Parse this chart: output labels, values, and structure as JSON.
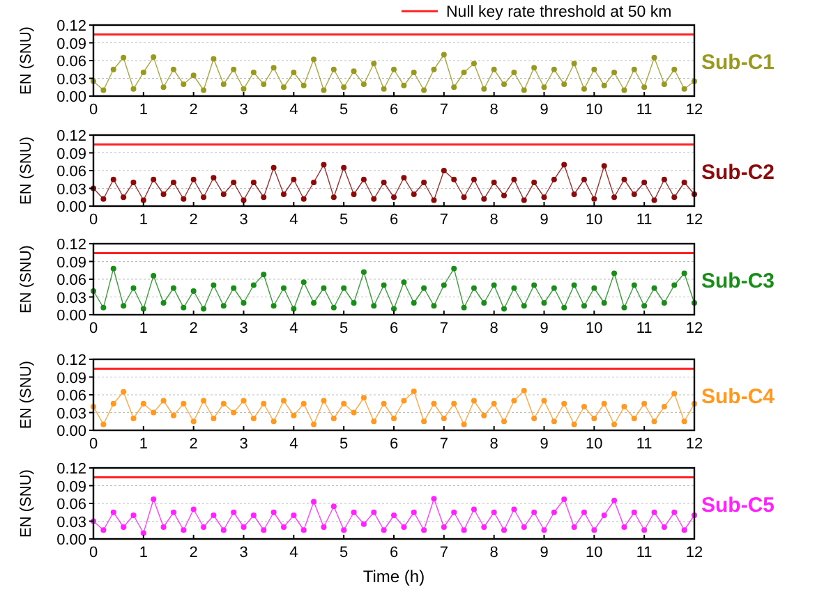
{
  "chart_data": [
    {
      "type": "line",
      "ylabel": "EN (SNU)",
      "x": [
        0,
        0.2,
        0.4,
        0.6,
        0.8,
        1,
        1.2,
        1.4,
        1.6,
        1.8,
        2,
        2.2,
        2.4,
        2.6,
        2.8,
        3,
        3.2,
        3.4,
        3.6,
        3.8,
        4,
        4.2,
        4.4,
        4.6,
        4.8,
        5,
        5.2,
        5.4,
        5.6,
        5.8,
        6,
        6.2,
        6.4,
        6.6,
        6.8,
        7,
        7.2,
        7.4,
        7.6,
        7.8,
        8,
        8.2,
        8.4,
        8.6,
        8.8,
        9,
        9.2,
        9.4,
        9.6,
        9.8,
        10,
        10.2,
        10.4,
        10.6,
        10.8,
        11,
        11.2,
        11.4,
        11.6,
        11.8,
        12
      ],
      "series": [
        {
          "name": "Sub-C1",
          "color": "#999922",
          "values": [
            0.025,
            0.01,
            0.045,
            0.065,
            0.012,
            0.04,
            0.066,
            0.015,
            0.045,
            0.02,
            0.035,
            0.01,
            0.063,
            0.02,
            0.045,
            0.012,
            0.04,
            0.02,
            0.048,
            0.015,
            0.04,
            0.018,
            0.062,
            0.01,
            0.045,
            0.015,
            0.042,
            0.02,
            0.055,
            0.012,
            0.045,
            0.018,
            0.04,
            0.01,
            0.045,
            0.07,
            0.015,
            0.04,
            0.055,
            0.012,
            0.045,
            0.02,
            0.04,
            0.01,
            0.048,
            0.015,
            0.045,
            0.02,
            0.055,
            0.012,
            0.045,
            0.018,
            0.04,
            0.01,
            0.045,
            0.015,
            0.065,
            0.02,
            0.045,
            0.012,
            0.025
          ]
        }
      ],
      "xlim": [
        0,
        12
      ],
      "xticks": [
        0,
        1,
        2,
        3,
        4,
        5,
        6,
        7,
        8,
        9,
        10,
        11,
        12
      ],
      "ylim": [
        0,
        0.12
      ],
      "yticks": [
        {
          "value": 0,
          "label": "0.00"
        },
        {
          "value": 0.03,
          "label": "0.03"
        },
        {
          "value": 0.06,
          "label": "0.06"
        },
        {
          "value": 0.09,
          "label": "0.09"
        },
        {
          "value": 0.12,
          "label": "0.12"
        }
      ],
      "ref_lines": [
        {
          "axis": "y",
          "value": 0.104,
          "label": "Null key rate threshold at 50 km",
          "color": "#ff2020"
        }
      ],
      "grid": "y",
      "marker": "circle",
      "legend": "top right"
    },
    {
      "type": "line",
      "ylabel": "EN (SNU)",
      "x": [
        0,
        0.2,
        0.4,
        0.6,
        0.8,
        1,
        1.2,
        1.4,
        1.6,
        1.8,
        2,
        2.2,
        2.4,
        2.6,
        2.8,
        3,
        3.2,
        3.4,
        3.6,
        3.8,
        4,
        4.2,
        4.4,
        4.6,
        4.8,
        5,
        5.2,
        5.4,
        5.6,
        5.8,
        6,
        6.2,
        6.4,
        6.6,
        6.8,
        7,
        7.2,
        7.4,
        7.6,
        7.8,
        8,
        8.2,
        8.4,
        8.6,
        8.8,
        9,
        9.2,
        9.4,
        9.6,
        9.8,
        10,
        10.2,
        10.4,
        10.6,
        10.8,
        11,
        11.2,
        11.4,
        11.6,
        11.8,
        12
      ],
      "series": [
        {
          "name": "Sub-C2",
          "color": "#8b0a0a",
          "values": [
            0.03,
            0.012,
            0.045,
            0.015,
            0.04,
            0.01,
            0.045,
            0.02,
            0.04,
            0.012,
            0.045,
            0.015,
            0.048,
            0.02,
            0.04,
            0.01,
            0.04,
            0.015,
            0.065,
            0.02,
            0.045,
            0.012,
            0.04,
            0.07,
            0.015,
            0.065,
            0.02,
            0.045,
            0.012,
            0.04,
            0.015,
            0.048,
            0.02,
            0.04,
            0.01,
            0.06,
            0.045,
            0.015,
            0.045,
            0.012,
            0.04,
            0.018,
            0.045,
            0.01,
            0.04,
            0.015,
            0.045,
            0.07,
            0.02,
            0.045,
            0.012,
            0.068,
            0.015,
            0.045,
            0.02,
            0.04,
            0.01,
            0.045,
            0.015,
            0.04,
            0.02
          ]
        }
      ],
      "xlim": [
        0,
        12
      ],
      "xticks": [
        0,
        1,
        2,
        3,
        4,
        5,
        6,
        7,
        8,
        9,
        10,
        11,
        12
      ],
      "ylim": [
        0,
        0.12
      ],
      "yticks": [
        {
          "value": 0,
          "label": "0.00"
        },
        {
          "value": 0.03,
          "label": "0.03"
        },
        {
          "value": 0.06,
          "label": "0.06"
        },
        {
          "value": 0.09,
          "label": "0.09"
        },
        {
          "value": 0.12,
          "label": "0.12"
        }
      ],
      "ref_lines": [
        {
          "axis": "y",
          "value": 0.104,
          "color": "#ff2020"
        }
      ],
      "grid": "y",
      "marker": "circle"
    },
    {
      "type": "line",
      "ylabel": "EN (SNU)",
      "x": [
        0,
        0.2,
        0.4,
        0.6,
        0.8,
        1,
        1.2,
        1.4,
        1.6,
        1.8,
        2,
        2.2,
        2.4,
        2.6,
        2.8,
        3,
        3.2,
        3.4,
        3.6,
        3.8,
        4,
        4.2,
        4.4,
        4.6,
        4.8,
        5,
        5.2,
        5.4,
        5.6,
        5.8,
        6,
        6.2,
        6.4,
        6.6,
        6.8,
        7,
        7.2,
        7.4,
        7.6,
        7.8,
        8,
        8.2,
        8.4,
        8.6,
        8.8,
        9,
        9.2,
        9.4,
        9.6,
        9.8,
        10,
        10.2,
        10.4,
        10.6,
        10.8,
        11,
        11.2,
        11.4,
        11.6,
        11.8,
        12
      ],
      "series": [
        {
          "name": "Sub-C3",
          "color": "#1a8c1a",
          "values": [
            0.04,
            0.012,
            0.078,
            0.015,
            0.045,
            0.01,
            0.066,
            0.02,
            0.045,
            0.012,
            0.04,
            0.01,
            0.05,
            0.015,
            0.045,
            0.02,
            0.05,
            0.068,
            0.015,
            0.045,
            0.01,
            0.055,
            0.02,
            0.045,
            0.012,
            0.045,
            0.02,
            0.072,
            0.015,
            0.05,
            0.01,
            0.055,
            0.02,
            0.045,
            0.015,
            0.05,
            0.078,
            0.012,
            0.045,
            0.02,
            0.05,
            0.01,
            0.045,
            0.015,
            0.05,
            0.02,
            0.045,
            0.012,
            0.05,
            0.015,
            0.045,
            0.02,
            0.07,
            0.012,
            0.05,
            0.015,
            0.045,
            0.02,
            0.05,
            0.07,
            0.02
          ]
        }
      ],
      "xlim": [
        0,
        12
      ],
      "xticks": [
        0,
        1,
        2,
        3,
        4,
        5,
        6,
        7,
        8,
        9,
        10,
        11,
        12
      ],
      "ylim": [
        0,
        0.12
      ],
      "yticks": [
        {
          "value": 0,
          "label": "0.00"
        },
        {
          "value": 0.03,
          "label": "0.03"
        },
        {
          "value": 0.06,
          "label": "0.06"
        },
        {
          "value": 0.09,
          "label": "0.09"
        },
        {
          "value": 0.12,
          "label": "0.12"
        }
      ],
      "ref_lines": [
        {
          "axis": "y",
          "value": 0.104,
          "color": "#ff2020"
        }
      ],
      "grid": "y",
      "marker": "circle"
    },
    {
      "type": "line",
      "ylabel": "EN (SNU)",
      "x": [
        0,
        0.2,
        0.4,
        0.6,
        0.8,
        1,
        1.2,
        1.4,
        1.6,
        1.8,
        2,
        2.2,
        2.4,
        2.6,
        2.8,
        3,
        3.2,
        3.4,
        3.6,
        3.8,
        4,
        4.2,
        4.4,
        4.6,
        4.8,
        5,
        5.2,
        5.4,
        5.6,
        5.8,
        6,
        6.2,
        6.4,
        6.6,
        6.8,
        7,
        7.2,
        7.4,
        7.6,
        7.8,
        8,
        8.2,
        8.4,
        8.6,
        8.8,
        9,
        9.2,
        9.4,
        9.6,
        9.8,
        10,
        10.2,
        10.4,
        10.6,
        10.8,
        11,
        11.2,
        11.4,
        11.6,
        11.8,
        12
      ],
      "series": [
        {
          "name": "Sub-C4",
          "color": "#ff9922",
          "values": [
            0.04,
            0.01,
            0.045,
            0.065,
            0.02,
            0.045,
            0.03,
            0.05,
            0.025,
            0.045,
            0.015,
            0.05,
            0.02,
            0.045,
            0.03,
            0.05,
            0.02,
            0.045,
            0.015,
            0.05,
            0.025,
            0.045,
            0.01,
            0.05,
            0.02,
            0.045,
            0.03,
            0.055,
            0.015,
            0.045,
            0.02,
            0.05,
            0.066,
            0.015,
            0.045,
            0.02,
            0.045,
            0.01,
            0.05,
            0.025,
            0.045,
            0.015,
            0.05,
            0.067,
            0.02,
            0.05,
            0.015,
            0.045,
            0.01,
            0.04,
            0.02,
            0.045,
            0.01,
            0.04,
            0.02,
            0.045,
            0.015,
            0.04,
            0.062,
            0.015,
            0.045
          ]
        }
      ],
      "xlim": [
        0,
        12
      ],
      "xticks": [
        0,
        1,
        2,
        3,
        4,
        5,
        6,
        7,
        8,
        9,
        10,
        11,
        12
      ],
      "ylim": [
        0,
        0.12
      ],
      "yticks": [
        {
          "value": 0,
          "label": "0.00"
        },
        {
          "value": 0.03,
          "label": "0.03"
        },
        {
          "value": 0.06,
          "label": "0.06"
        },
        {
          "value": 0.09,
          "label": "0.09"
        },
        {
          "value": 0.12,
          "label": "0.12"
        }
      ],
      "ref_lines": [
        {
          "axis": "y",
          "value": 0.104,
          "color": "#ff2020"
        }
      ],
      "grid": "y",
      "marker": "circle"
    },
    {
      "type": "line",
      "ylabel": "EN (SNU)",
      "xlabel": "Time (h)",
      "x": [
        0,
        0.2,
        0.4,
        0.6,
        0.8,
        1,
        1.2,
        1.4,
        1.6,
        1.8,
        2,
        2.2,
        2.4,
        2.6,
        2.8,
        3,
        3.2,
        3.4,
        3.6,
        3.8,
        4,
        4.2,
        4.4,
        4.6,
        4.8,
        5,
        5.2,
        5.4,
        5.6,
        5.8,
        6,
        6.2,
        6.4,
        6.6,
        6.8,
        7,
        7.2,
        7.4,
        7.6,
        7.8,
        8,
        8.2,
        8.4,
        8.6,
        8.8,
        9,
        9.2,
        9.4,
        9.6,
        9.8,
        10,
        10.2,
        10.4,
        10.6,
        10.8,
        11,
        11.2,
        11.4,
        11.6,
        11.8,
        12
      ],
      "series": [
        {
          "name": "Sub-C5",
          "color": "#ff22ff",
          "values": [
            0.03,
            0.015,
            0.045,
            0.02,
            0.04,
            0.01,
            0.067,
            0.02,
            0.045,
            0.015,
            0.05,
            0.02,
            0.04,
            0.015,
            0.045,
            0.02,
            0.04,
            0.015,
            0.045,
            0.02,
            0.04,
            0.015,
            0.063,
            0.02,
            0.055,
            0.015,
            0.045,
            0.025,
            0.045,
            0.015,
            0.04,
            0.02,
            0.045,
            0.015,
            0.068,
            0.02,
            0.045,
            0.015,
            0.05,
            0.02,
            0.045,
            0.015,
            0.05,
            0.02,
            0.045,
            0.015,
            0.045,
            0.067,
            0.02,
            0.045,
            0.015,
            0.04,
            0.065,
            0.02,
            0.045,
            0.015,
            0.045,
            0.02,
            0.045,
            0.015,
            0.04
          ]
        }
      ],
      "xlim": [
        0,
        12
      ],
      "xticks": [
        0,
        1,
        2,
        3,
        4,
        5,
        6,
        7,
        8,
        9,
        10,
        11,
        12
      ],
      "ylim": [
        0,
        0.12
      ],
      "yticks": [
        {
          "value": 0,
          "label": "0.00"
        },
        {
          "value": 0.03,
          "label": "0.03"
        },
        {
          "value": 0.06,
          "label": "0.06"
        },
        {
          "value": 0.09,
          "label": "0.09"
        },
        {
          "value": 0.12,
          "label": "0.12"
        }
      ],
      "ref_lines": [
        {
          "axis": "y",
          "value": 0.104,
          "color": "#ff2020"
        }
      ],
      "grid": "y",
      "marker": "circle"
    }
  ]
}
